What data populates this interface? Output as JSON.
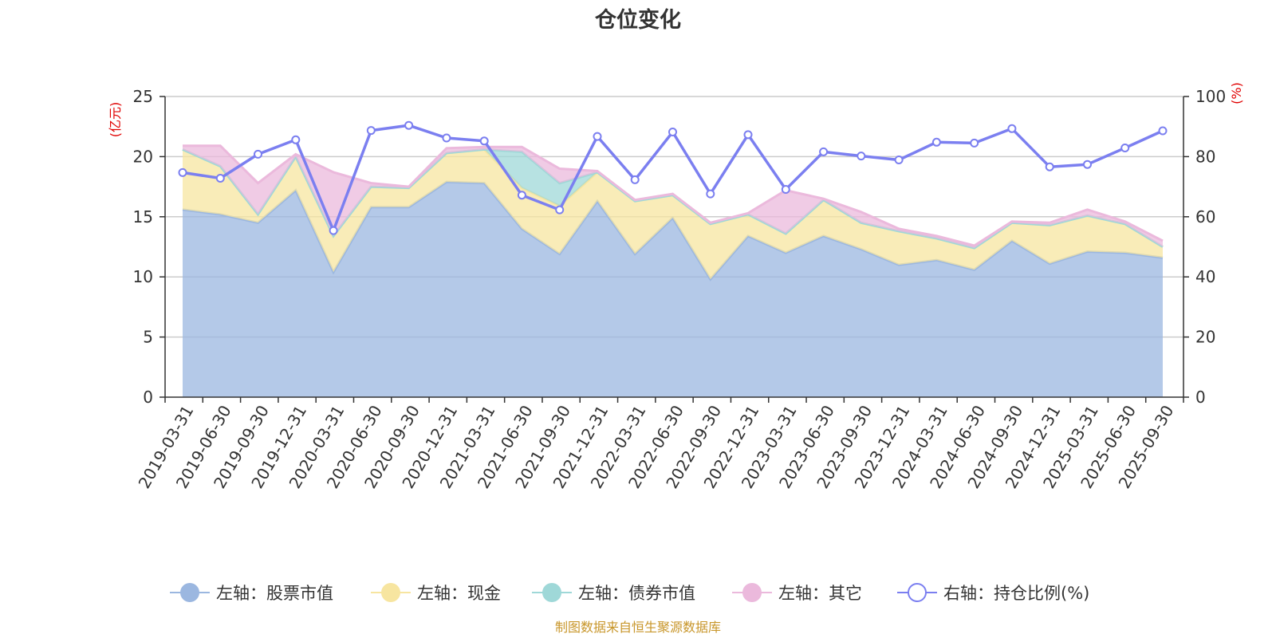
{
  "chart_data": {
    "type": "area",
    "title": "仓位变化",
    "left_axis_unit": "(亿元)",
    "right_axis_unit": "(%)",
    "left_ylim": [
      0,
      25
    ],
    "right_ylim": [
      0,
      100
    ],
    "left_ticks": [
      "0",
      "5",
      "10",
      "15",
      "20",
      "25"
    ],
    "right_ticks": [
      "0",
      "20",
      "40",
      "60",
      "80",
      "100"
    ],
    "categories": [
      "2019-03-31",
      "2019-06-30",
      "2019-09-30",
      "2019-12-31",
      "2020-03-31",
      "2020-06-30",
      "2020-09-30",
      "2020-12-31",
      "2021-03-31",
      "2021-06-30",
      "2021-09-30",
      "2021-12-31",
      "2022-03-31",
      "2022-06-30",
      "2022-09-30",
      "2022-12-31",
      "2023-03-31",
      "2023-06-30",
      "2023-09-30",
      "2023-12-31",
      "2024-03-31",
      "2024-06-30",
      "2024-09-30",
      "2024-12-31",
      "2025-03-31",
      "2025-06-30",
      "2025-09-30"
    ],
    "series": [
      {
        "name": "左轴：股票市值",
        "axis": "left",
        "color": "#9bb7e0",
        "values": [
          15.6,
          15.2,
          14.5,
          17.2,
          10.4,
          15.8,
          15.8,
          17.9,
          17.8,
          14.0,
          11.9,
          16.3,
          11.9,
          14.9,
          9.8,
          13.4,
          12.0,
          13.4,
          12.3,
          11.0,
          11.4,
          10.6,
          13.0,
          11.1,
          12.1,
          12.0,
          11.6
        ]
      },
      {
        "name": "左轴：现金",
        "axis": "left",
        "color": "#f7e5a0",
        "values": [
          5.0,
          4.0,
          0.7,
          2.8,
          3.0,
          1.7,
          1.6,
          2.4,
          2.8,
          3.4,
          4.0,
          2.4,
          4.4,
          1.9,
          4.6,
          1.8,
          1.6,
          3.0,
          2.2,
          2.8,
          1.8,
          1.8,
          1.5,
          3.2,
          3.0,
          2.4,
          0.9
        ]
      },
      {
        "name": "左轴：债券市值",
        "axis": "left",
        "color": "#9fd8d8",
        "values": [
          0,
          0,
          0,
          0,
          0,
          0,
          0,
          0,
          0,
          3.0,
          1.9,
          0,
          0,
          0,
          0,
          0,
          0,
          0,
          0,
          0,
          0,
          0,
          0,
          0,
          0,
          0,
          0
        ]
      },
      {
        "name": "左轴：其它",
        "axis": "left",
        "color": "#ebb9dc",
        "values": [
          0.3,
          1.7,
          2.6,
          0.2,
          5.3,
          0.3,
          0.1,
          0.4,
          0.2,
          0.4,
          1.2,
          0.1,
          0.1,
          0.1,
          0.1,
          0.1,
          3.6,
          0.1,
          0.9,
          0.2,
          0.2,
          0.2,
          0.1,
          0.2,
          0.5,
          0.2,
          0.5
        ]
      },
      {
        "name": "右轴：持仓比例(%)",
        "axis": "right",
        "color": "#7b7ff0",
        "values": [
          74.7,
          72.8,
          80.8,
          85.6,
          55.4,
          88.7,
          90.4,
          86.2,
          85.2,
          67.2,
          62.3,
          86.7,
          72.3,
          88.2,
          67.6,
          87.3,
          69.1,
          81.6,
          80.2,
          78.9,
          84.8,
          84.5,
          89.3,
          76.6,
          77.4,
          82.9,
          88.6
        ]
      }
    ]
  },
  "legend": [
    {
      "label": "左轴：股票市值",
      "icon": "filled-circle",
      "color": "#9bb7e0"
    },
    {
      "label": "左轴：现金",
      "icon": "filled-circle",
      "color": "#f7e5a0"
    },
    {
      "label": "左轴：债券市值",
      "icon": "filled-circle",
      "color": "#9fd8d8"
    },
    {
      "label": "左轴：其它",
      "icon": "filled-circle",
      "color": "#ebb9dc"
    },
    {
      "label": "右轴：持仓比例(%)",
      "icon": "hollow-circle",
      "color": "#7b7ff0"
    }
  ],
  "source": "制图数据来自恒生聚源数据库"
}
